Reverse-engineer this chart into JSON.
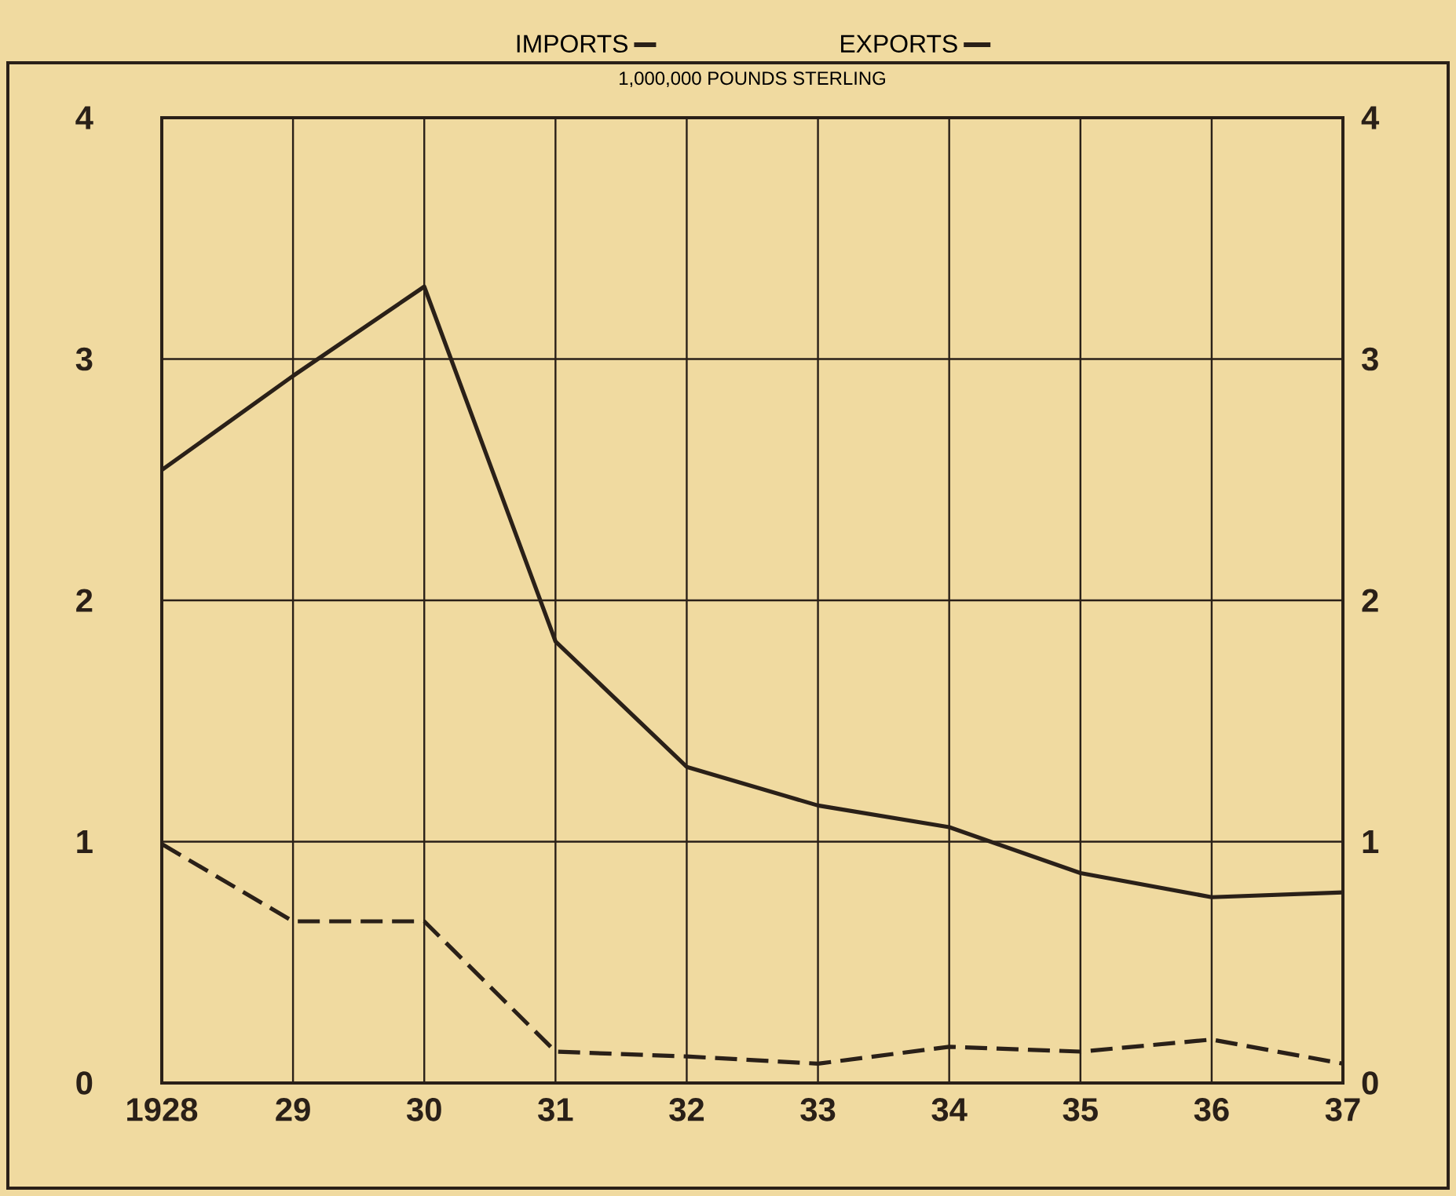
{
  "chart_data": {
    "type": "line",
    "title": "1,000,000 POUNDS STERLING",
    "x": [
      1928,
      1929,
      1930,
      1931,
      1932,
      1933,
      1934,
      1935,
      1936,
      1937
    ],
    "series": [
      {
        "name": "IMPORTS",
        "color": "#2a2018",
        "line_style": "dashed",
        "values": [
          0.99,
          0.67,
          0.67,
          0.13,
          0.11,
          0.08,
          0.15,
          0.13,
          0.18,
          0.08
        ]
      },
      {
        "name": "EXPORTS",
        "color": "#2a2018",
        "line_style": "solid",
        "values": [
          2.54,
          2.93,
          3.3,
          1.83,
          1.31,
          1.15,
          1.06,
          0.87,
          0.77,
          0.79
        ]
      }
    ],
    "xlim": [
      1928,
      1937
    ],
    "xticks": [
      1928,
      {
        "value": 1929,
        "label": "29"
      },
      {
        "value": 1930,
        "label": "30"
      },
      {
        "value": 1931,
        "label": "31"
      },
      {
        "value": 1932,
        "label": "32"
      },
      {
        "value": 1933,
        "label": "33"
      },
      {
        "value": 1934,
        "label": "34"
      },
      {
        "value": 1935,
        "label": "35"
      },
      {
        "value": 1936,
        "label": "36"
      },
      {
        "value": 1937,
        "label": "37"
      }
    ],
    "ylim": [
      0,
      4
    ],
    "yticks": [
      0,
      1,
      2,
      3,
      4
    ],
    "y2lim": [
      0,
      4
    ],
    "y2ticks": [
      0,
      1,
      2,
      3,
      4
    ],
    "grid": true,
    "legend": "top"
  }
}
